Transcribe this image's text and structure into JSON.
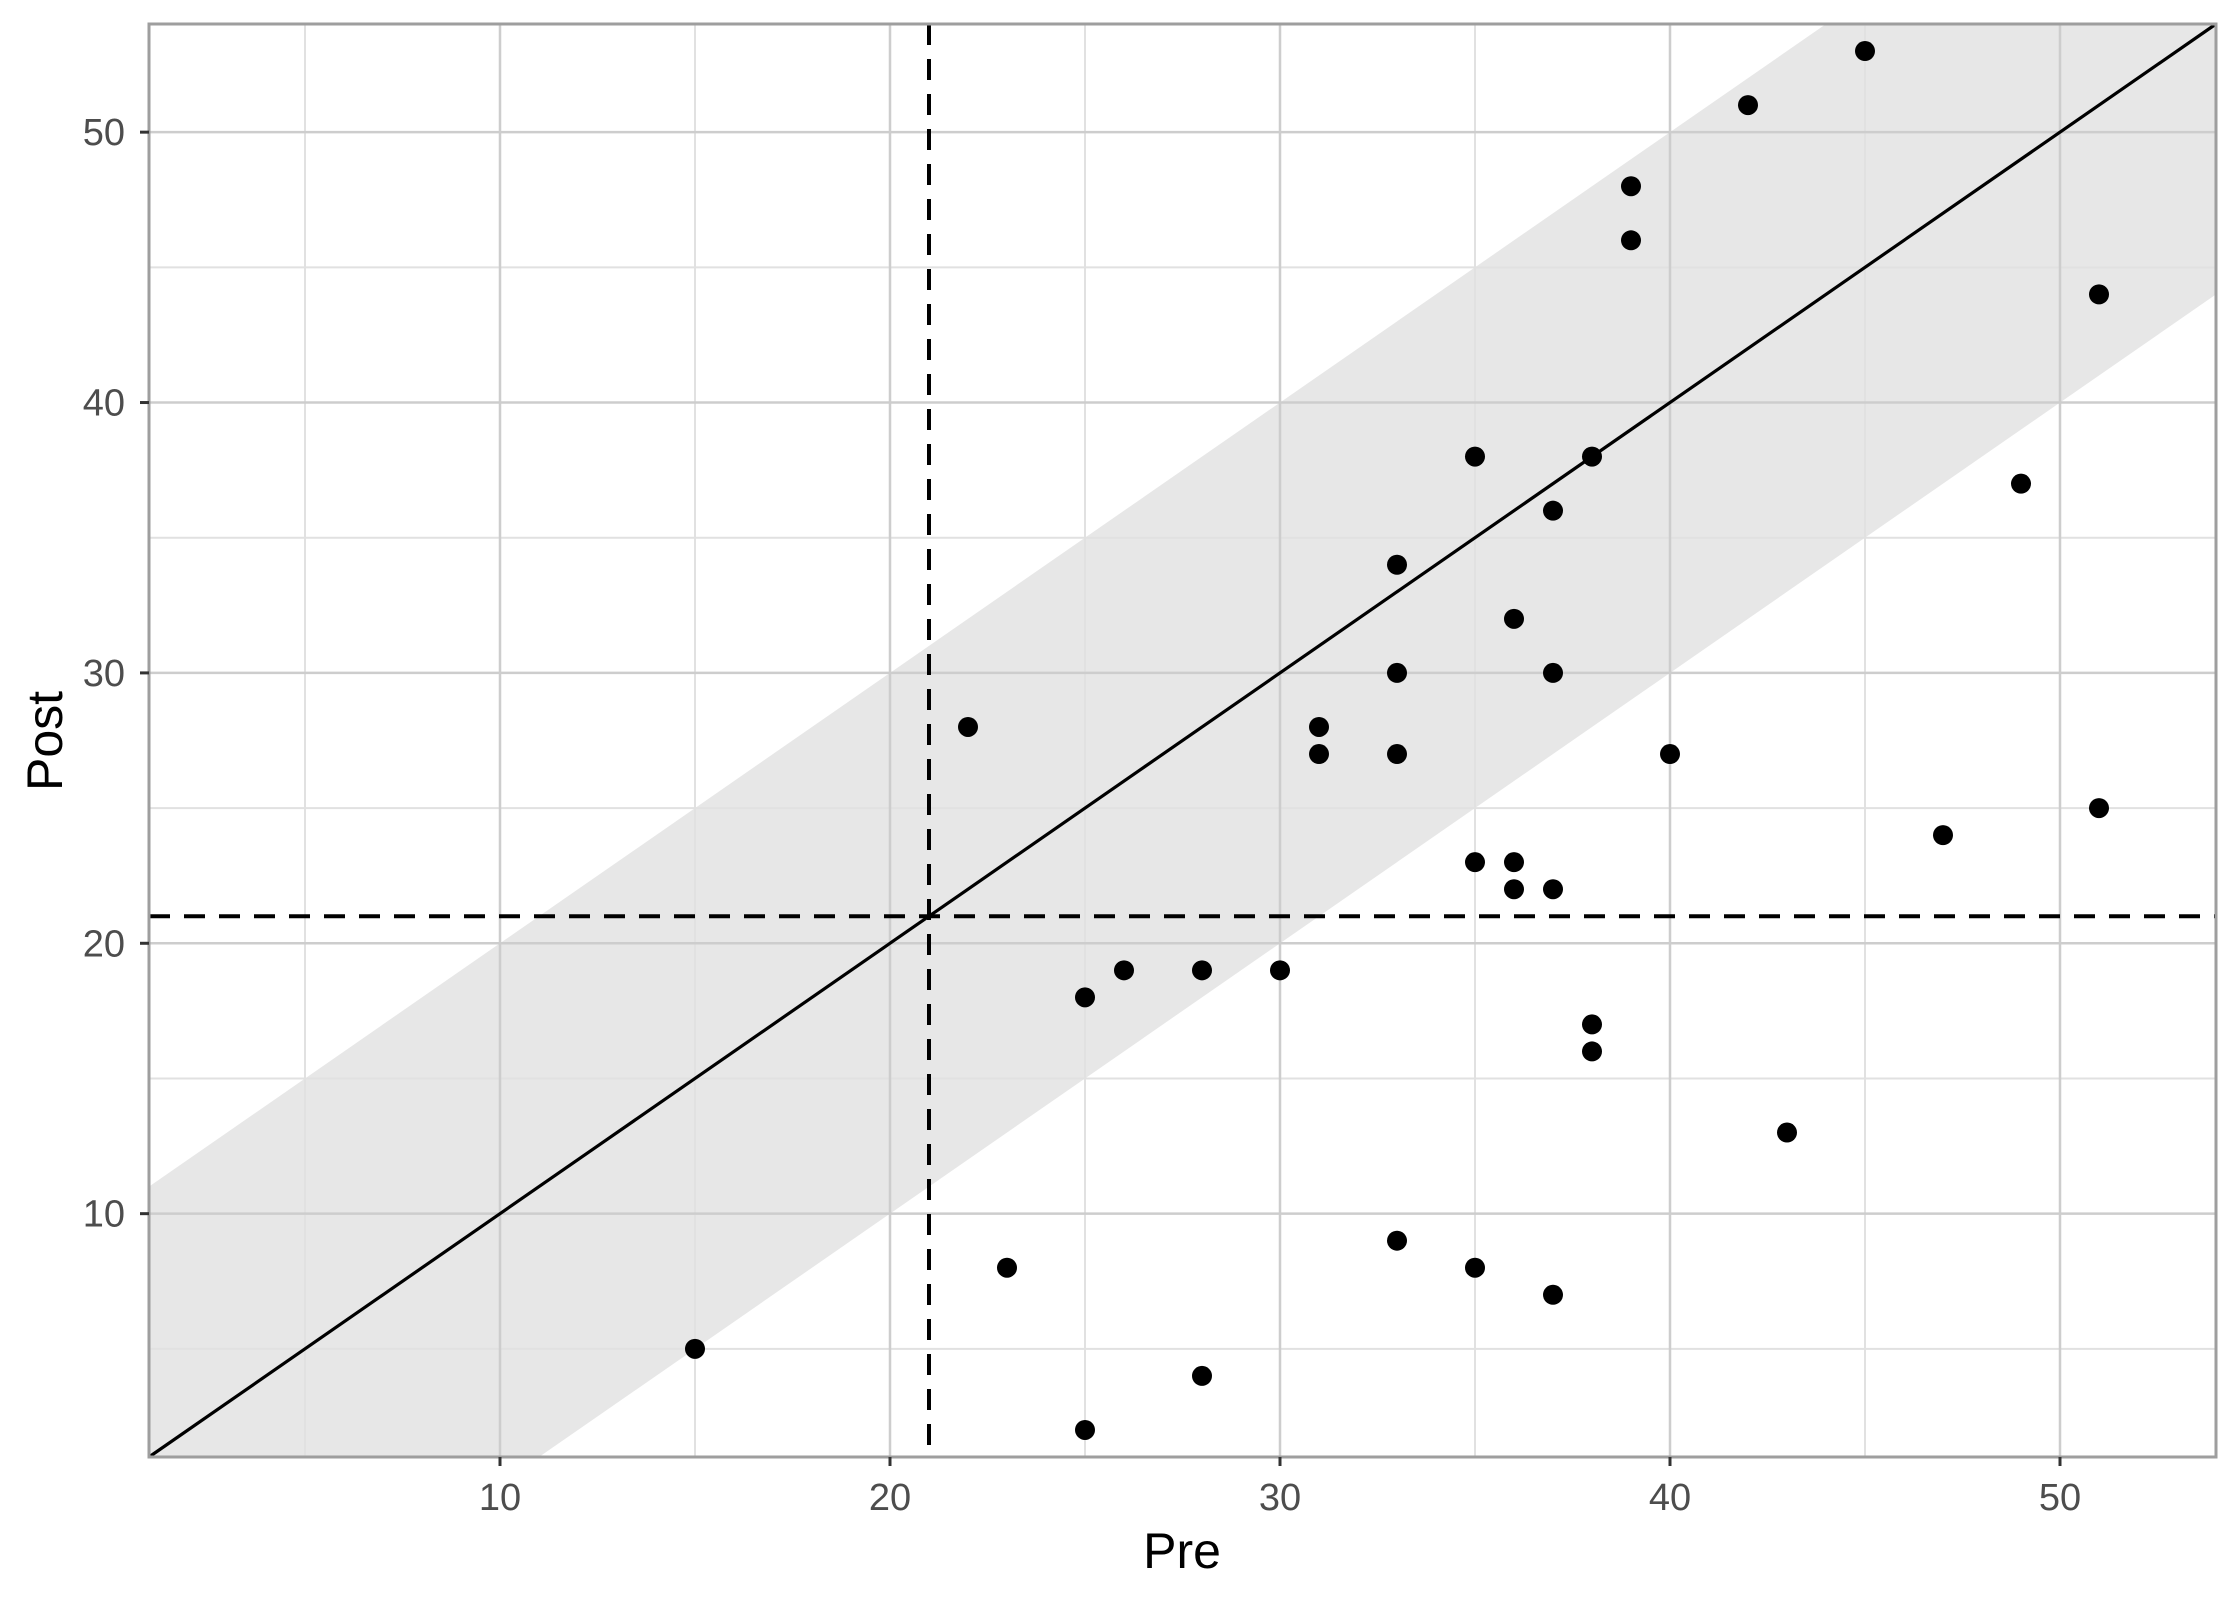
{
  "figure": {
    "background": "#ffffff"
  },
  "chart_data": {
    "type": "scatter",
    "xlabel": "Pre",
    "ylabel": "Post",
    "xlim": [
      1,
      54
    ],
    "ylim": [
      1,
      54
    ],
    "x_major_ticks": [
      10,
      20,
      30,
      40,
      50
    ],
    "y_major_ticks": [
      10,
      20,
      30,
      40,
      50
    ],
    "x_minor_gridlines": [
      5,
      15,
      25,
      35,
      45
    ],
    "y_minor_gridlines": [
      5,
      15,
      25,
      35,
      45
    ],
    "grid": "major-and-minor",
    "legend": "none",
    "identity_line": {
      "slope": 1,
      "intercept": 0,
      "style": "solid"
    },
    "agreement_band": {
      "around": "identity-line",
      "offset": 10
    },
    "reference_lines": {
      "vertical_x": 21,
      "horizontal_y": 21,
      "style": "dashed"
    },
    "points": [
      [
        15,
        5
      ],
      [
        22,
        28
      ],
      [
        23,
        8
      ],
      [
        25,
        2
      ],
      [
        25,
        18
      ],
      [
        26,
        19
      ],
      [
        28,
        4
      ],
      [
        28,
        19
      ],
      [
        30,
        19
      ],
      [
        31,
        27
      ],
      [
        31,
        28
      ],
      [
        33,
        9
      ],
      [
        33,
        27
      ],
      [
        33,
        30
      ],
      [
        33,
        34
      ],
      [
        35,
        8
      ],
      [
        35,
        23
      ],
      [
        35,
        38
      ],
      [
        36,
        22
      ],
      [
        36,
        23
      ],
      [
        36,
        32
      ],
      [
        37,
        7
      ],
      [
        37,
        22
      ],
      [
        37,
        30
      ],
      [
        37,
        36
      ],
      [
        38,
        16
      ],
      [
        38,
        17
      ],
      [
        38,
        38
      ],
      [
        39,
        46
      ],
      [
        39,
        48
      ],
      [
        40,
        27
      ],
      [
        42,
        51
      ],
      [
        43,
        13
      ],
      [
        45,
        53
      ],
      [
        47,
        24
      ],
      [
        49,
        37
      ],
      [
        51,
        25
      ],
      [
        51,
        44
      ]
    ],
    "colors": {
      "point": "#000000",
      "band": "#e7e7e7",
      "grid_major": "#cdcdcd",
      "grid_minor": "#e1e1e1",
      "panel_border": "#9e9e9e",
      "axis_tick": "#333333",
      "tick_label": "#4d4d4d",
      "axis_title": "#000000",
      "line": "#000000"
    }
  }
}
